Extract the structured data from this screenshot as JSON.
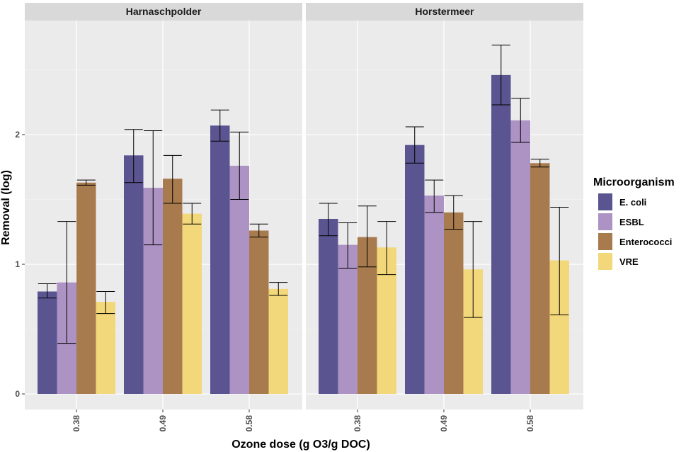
{
  "chart_data": {
    "type": "bar",
    "facets": [
      "Harnaschpolder",
      "Horstermeer"
    ],
    "categories": [
      "0.38",
      "0.49",
      "0.58"
    ],
    "xlabel": "Ozone dose (g O3/g DOC)",
    "ylabel": "Removal (log)",
    "ylim": [
      -0.12,
      2.88
    ],
    "yticks": [
      0,
      1,
      2
    ],
    "legend_title": "Microorganism",
    "legend_position": "right",
    "grid": true,
    "series": [
      {
        "name": "E. coli",
        "color": "#5a5591",
        "values": {
          "Harnaschpolder": [
            0.79,
            1.84,
            2.07
          ],
          "Horstermeer": [
            1.35,
            1.92,
            2.46
          ]
        },
        "errors": {
          "Harnaschpolder": [
            [
              0.74,
              0.85
            ],
            [
              1.63,
              2.04
            ],
            [
              1.95,
              2.19
            ]
          ],
          "Horstermeer": [
            [
              1.22,
              1.47
            ],
            [
              1.78,
              2.06
            ],
            [
              2.23,
              2.69
            ]
          ]
        }
      },
      {
        "name": "ESBL",
        "color": "#ad92c4",
        "values": {
          "Harnaschpolder": [
            0.86,
            1.59,
            1.76
          ],
          "Horstermeer": [
            1.15,
            1.53,
            2.11
          ]
        },
        "errors": {
          "Harnaschpolder": [
            [
              0.39,
              1.33
            ],
            [
              1.15,
              2.03
            ],
            [
              1.5,
              2.02
            ]
          ],
          "Horstermeer": [
            [
              0.97,
              1.32
            ],
            [
              1.4,
              1.65
            ],
            [
              1.94,
              2.28
            ]
          ]
        }
      },
      {
        "name": "Enterococci",
        "color": "#a77b4d",
        "values": {
          "Harnaschpolder": [
            1.63,
            1.66,
            1.26
          ],
          "Horstermeer": [
            1.21,
            1.4,
            1.78
          ]
        },
        "errors": {
          "Harnaschpolder": [
            [
              1.61,
              1.65
            ],
            [
              1.47,
              1.84
            ],
            [
              1.21,
              1.31
            ]
          ],
          "Horstermeer": [
            [
              0.98,
              1.45
            ],
            [
              1.27,
              1.53
            ],
            [
              1.75,
              1.81
            ]
          ]
        }
      },
      {
        "name": "VRE",
        "color": "#f2d87a",
        "values": {
          "Harnaschpolder": [
            0.71,
            1.39,
            0.81
          ],
          "Horstermeer": [
            1.13,
            0.96,
            1.03
          ]
        },
        "errors": {
          "Harnaschpolder": [
            [
              0.62,
              0.79
            ],
            [
              1.31,
              1.47
            ],
            [
              0.76,
              0.86
            ]
          ],
          "Horstermeer": [
            [
              0.92,
              1.33
            ],
            [
              0.59,
              1.33
            ],
            [
              0.61,
              1.44
            ]
          ]
        }
      }
    ]
  }
}
